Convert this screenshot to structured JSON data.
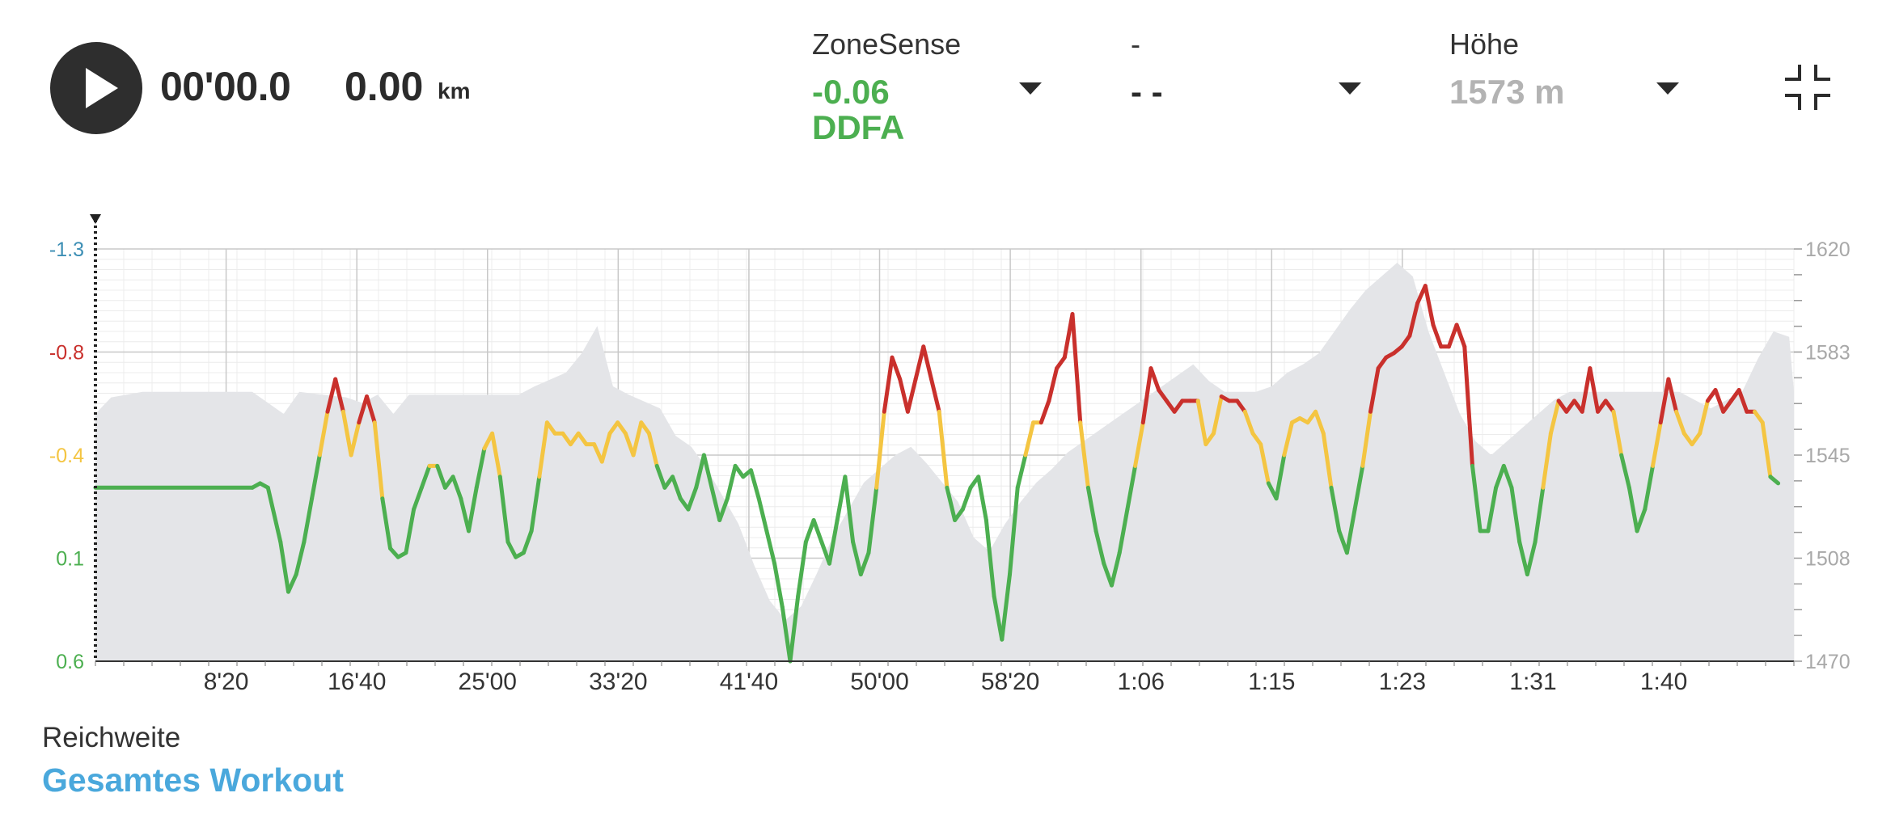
{
  "player": {
    "time": "00'00.0",
    "distance": "0.00",
    "distance_unit": "km"
  },
  "metrics": [
    {
      "label": "ZoneSense",
      "value": "-0.06",
      "value2": "DDFA",
      "color": "#4caf50"
    },
    {
      "label": "-",
      "value": "- -",
      "value2": "",
      "color": "#2b2b2b"
    },
    {
      "label": "Höhe",
      "value": "1573 m",
      "value2": "",
      "color": "#b3b3b3"
    }
  ],
  "icons": {
    "play": "play-icon",
    "collapse": "collapse-icon",
    "dropdown": "chevron-down-icon"
  },
  "range": {
    "label": "Reichweite",
    "value": "Gesamtes Workout"
  },
  "colors": {
    "green": "#4caf50",
    "yellow": "#f4c542",
    "red": "#c9302c",
    "blue_link": "#4aa8dc",
    "elevation_fill": "#e4e5e8"
  },
  "chart_data": {
    "type": "line",
    "x_unit": "minutes",
    "xlim": [
      0,
      108.3
    ],
    "x_ticks": [
      {
        "value": 8.333,
        "label": "8'20"
      },
      {
        "value": 16.667,
        "label": "16'40"
      },
      {
        "value": 25,
        "label": "25'00"
      },
      {
        "value": 33.333,
        "label": "33'20"
      },
      {
        "value": 41.667,
        "label": "41'40"
      },
      {
        "value": 50,
        "label": "50'00"
      },
      {
        "value": 58.333,
        "label": "58'20"
      },
      {
        "value": 66.667,
        "label": "1:06"
      },
      {
        "value": 75,
        "label": "1:15"
      },
      {
        "value": 83.333,
        "label": "1:23"
      },
      {
        "value": 91.667,
        "label": "1:31"
      },
      {
        "value": 100,
        "label": "1:40"
      }
    ],
    "y_left": {
      "ticks": [
        "-1.3",
        "-0.8",
        "-0.4",
        "0.1",
        "0.6"
      ],
      "tick_colors": [
        "#3d8fb5",
        "#c9302c",
        "#f4c542",
        "#4caf50",
        "#4caf50"
      ],
      "ylim": [
        0.6,
        -1.3
      ]
    },
    "y_right": {
      "ticks": [
        "1620",
        "1583",
        "1545",
        "1508",
        "1470"
      ],
      "ylim": [
        1470,
        1620
      ]
    },
    "zone_thresholds": {
      "red_above": -0.55,
      "yellow_above": -0.3
    },
    "grid": true,
    "series": [
      {
        "axis": "left",
        "points": [
          [
            0,
            -0.2
          ],
          [
            10,
            -0.2
          ],
          [
            10.5,
            -0.22
          ],
          [
            11,
            -0.2
          ],
          [
            11.8,
            0.05
          ],
          [
            12.3,
            0.28
          ],
          [
            12.8,
            0.2
          ],
          [
            13.3,
            0.05
          ],
          [
            13.8,
            -0.15
          ],
          [
            14.3,
            -0.35
          ],
          [
            14.8,
            -0.55
          ],
          [
            15.3,
            -0.7
          ],
          [
            15.8,
            -0.55
          ],
          [
            16.3,
            -0.35
          ],
          [
            16.8,
            -0.5
          ],
          [
            17.3,
            -0.62
          ],
          [
            17.8,
            -0.5
          ],
          [
            18.3,
            -0.15
          ],
          [
            18.8,
            0.08
          ],
          [
            19.3,
            0.12
          ],
          [
            19.8,
            0.1
          ],
          [
            20.3,
            -0.1
          ],
          [
            20.8,
            -0.2
          ],
          [
            21.3,
            -0.3
          ],
          [
            21.8,
            -0.3
          ],
          [
            22.3,
            -0.2
          ],
          [
            22.8,
            -0.25
          ],
          [
            23.3,
            -0.15
          ],
          [
            23.8,
            0.0
          ],
          [
            24.3,
            -0.2
          ],
          [
            24.8,
            -0.38
          ],
          [
            25.3,
            -0.45
          ],
          [
            25.8,
            -0.25
          ],
          [
            26.3,
            0.05
          ],
          [
            26.8,
            0.12
          ],
          [
            27.3,
            0.1
          ],
          [
            27.8,
            0.0
          ],
          [
            28.3,
            -0.25
          ],
          [
            28.8,
            -0.5
          ],
          [
            29.3,
            -0.45
          ],
          [
            29.8,
            -0.45
          ],
          [
            30.3,
            -0.4
          ],
          [
            30.8,
            -0.45
          ],
          [
            31.3,
            -0.4
          ],
          [
            31.8,
            -0.4
          ],
          [
            32.3,
            -0.32
          ],
          [
            32.8,
            -0.45
          ],
          [
            33.3,
            -0.5
          ],
          [
            33.8,
            -0.45
          ],
          [
            34.3,
            -0.35
          ],
          [
            34.8,
            -0.5
          ],
          [
            35.3,
            -0.45
          ],
          [
            35.8,
            -0.3
          ],
          [
            36.3,
            -0.2
          ],
          [
            36.8,
            -0.25
          ],
          [
            37.3,
            -0.15
          ],
          [
            37.8,
            -0.1
          ],
          [
            38.3,
            -0.2
          ],
          [
            38.8,
            -0.35
          ],
          [
            39.3,
            -0.2
          ],
          [
            39.8,
            -0.05
          ],
          [
            40.3,
            -0.15
          ],
          [
            40.8,
            -0.3
          ],
          [
            41.3,
            -0.25
          ],
          [
            41.8,
            -0.28
          ],
          [
            42.3,
            -0.15
          ],
          [
            42.8,
            0.0
          ],
          [
            43.3,
            0.15
          ],
          [
            43.8,
            0.35
          ],
          [
            44.3,
            0.6
          ],
          [
            44.8,
            0.3
          ],
          [
            45.3,
            0.05
          ],
          [
            45.8,
            -0.05
          ],
          [
            46.3,
            0.05
          ],
          [
            46.8,
            0.15
          ],
          [
            47.3,
            -0.05
          ],
          [
            47.8,
            -0.25
          ],
          [
            48.3,
            0.05
          ],
          [
            48.8,
            0.2
          ],
          [
            49.3,
            0.1
          ],
          [
            49.8,
            -0.2
          ],
          [
            50.3,
            -0.55
          ],
          [
            50.8,
            -0.8
          ],
          [
            51.3,
            -0.7
          ],
          [
            51.8,
            -0.55
          ],
          [
            52.3,
            -0.7
          ],
          [
            52.8,
            -0.85
          ],
          [
            53.3,
            -0.7
          ],
          [
            53.8,
            -0.55
          ],
          [
            54.3,
            -0.2
          ],
          [
            54.8,
            -0.05
          ],
          [
            55.3,
            -0.1
          ],
          [
            55.8,
            -0.2
          ],
          [
            56.3,
            -0.25
          ],
          [
            56.8,
            -0.05
          ],
          [
            57.3,
            0.3
          ],
          [
            57.8,
            0.5
          ],
          [
            58.3,
            0.2
          ],
          [
            58.8,
            -0.2
          ],
          [
            59.3,
            -0.35
          ],
          [
            59.8,
            -0.5
          ],
          [
            60.3,
            -0.5
          ],
          [
            60.8,
            -0.6
          ],
          [
            61.3,
            -0.75
          ],
          [
            61.8,
            -0.8
          ],
          [
            62.3,
            -1.0
          ],
          [
            62.8,
            -0.5
          ],
          [
            63.3,
            -0.2
          ],
          [
            63.8,
            0.0
          ],
          [
            64.3,
            0.15
          ],
          [
            64.8,
            0.25
          ],
          [
            65.3,
            0.1
          ],
          [
            65.8,
            -0.1
          ],
          [
            66.3,
            -0.3
          ],
          [
            66.8,
            -0.5
          ],
          [
            67.3,
            -0.75
          ],
          [
            67.8,
            -0.65
          ],
          [
            68.3,
            -0.6
          ],
          [
            68.8,
            -0.55
          ],
          [
            69.3,
            -0.6
          ],
          [
            69.8,
            -0.6
          ],
          [
            70.3,
            -0.6
          ],
          [
            70.8,
            -0.4
          ],
          [
            71.3,
            -0.45
          ],
          [
            71.8,
            -0.62
          ],
          [
            72.3,
            -0.6
          ],
          [
            72.8,
            -0.6
          ],
          [
            73.3,
            -0.55
          ],
          [
            73.8,
            -0.45
          ],
          [
            74.3,
            -0.4
          ],
          [
            74.8,
            -0.22
          ],
          [
            75.3,
            -0.15
          ],
          [
            75.8,
            -0.35
          ],
          [
            76.3,
            -0.5
          ],
          [
            76.8,
            -0.52
          ],
          [
            77.3,
            -0.5
          ],
          [
            77.8,
            -0.55
          ],
          [
            78.3,
            -0.45
          ],
          [
            78.8,
            -0.2
          ],
          [
            79.3,
            0.0
          ],
          [
            79.8,
            0.1
          ],
          [
            80.3,
            -0.1
          ],
          [
            80.8,
            -0.3
          ],
          [
            81.3,
            -0.55
          ],
          [
            81.8,
            -0.75
          ],
          [
            82.3,
            -0.8
          ],
          [
            82.8,
            -0.82
          ],
          [
            83.3,
            -0.85
          ],
          [
            83.8,
            -0.9
          ],
          [
            84.3,
            -1.05
          ],
          [
            84.8,
            -1.13
          ],
          [
            85.3,
            -0.95
          ],
          [
            85.8,
            -0.85
          ],
          [
            86.3,
            -0.85
          ],
          [
            86.8,
            -0.95
          ],
          [
            87.3,
            -0.85
          ],
          [
            87.8,
            -0.3
          ],
          [
            88.3,
            0.0
          ],
          [
            88.8,
            0.0
          ],
          [
            89.3,
            -0.2
          ],
          [
            89.8,
            -0.3
          ],
          [
            90.3,
            -0.2
          ],
          [
            90.8,
            0.05
          ],
          [
            91.3,
            0.2
          ],
          [
            91.8,
            0.05
          ],
          [
            92.3,
            -0.2
          ],
          [
            92.8,
            -0.45
          ],
          [
            93.3,
            -0.6
          ],
          [
            93.8,
            -0.55
          ],
          [
            94.3,
            -0.6
          ],
          [
            94.8,
            -0.55
          ],
          [
            95.3,
            -0.75
          ],
          [
            95.8,
            -0.55
          ],
          [
            96.3,
            -0.6
          ],
          [
            96.8,
            -0.55
          ],
          [
            97.3,
            -0.35
          ],
          [
            97.8,
            -0.2
          ],
          [
            98.3,
            0.0
          ],
          [
            98.8,
            -0.1
          ],
          [
            99.3,
            -0.3
          ],
          [
            99.8,
            -0.5
          ],
          [
            100.3,
            -0.7
          ],
          [
            100.8,
            -0.55
          ],
          [
            101.3,
            -0.45
          ],
          [
            101.8,
            -0.4
          ],
          [
            102.3,
            -0.45
          ],
          [
            102.8,
            -0.6
          ],
          [
            103.3,
            -0.65
          ],
          [
            103.8,
            -0.55
          ],
          [
            104.3,
            -0.6
          ],
          [
            104.8,
            -0.65
          ],
          [
            105.3,
            -0.55
          ],
          [
            105.8,
            -0.55
          ],
          [
            106.3,
            -0.5
          ],
          [
            106.8,
            -0.25
          ],
          [
            107.3,
            -0.22
          ]
        ]
      },
      {
        "axis": "right",
        "points": [
          [
            0,
            1560
          ],
          [
            1,
            1566
          ],
          [
            3,
            1568
          ],
          [
            10,
            1568
          ],
          [
            12,
            1560
          ],
          [
            13,
            1568
          ],
          [
            16,
            1566
          ],
          [
            17,
            1564
          ],
          [
            18,
            1567
          ],
          [
            19,
            1560
          ],
          [
            20,
            1567
          ],
          [
            27,
            1567
          ],
          [
            28,
            1570
          ],
          [
            30,
            1575
          ],
          [
            31,
            1582
          ],
          [
            32,
            1592
          ],
          [
            33,
            1570
          ],
          [
            34,
            1567
          ],
          [
            36,
            1562
          ],
          [
            37,
            1552
          ],
          [
            38,
            1548
          ],
          [
            39,
            1540
          ],
          [
            40,
            1530
          ],
          [
            41,
            1520
          ],
          [
            42,
            1505
          ],
          [
            43,
            1492
          ],
          [
            44,
            1485
          ],
          [
            45,
            1490
          ],
          [
            46,
            1502
          ],
          [
            47,
            1515
          ],
          [
            48,
            1525
          ],
          [
            49,
            1535
          ],
          [
            50,
            1540
          ],
          [
            51,
            1545
          ],
          [
            52,
            1548
          ],
          [
            53,
            1542
          ],
          [
            54,
            1535
          ],
          [
            55,
            1528
          ],
          [
            56,
            1515
          ],
          [
            57,
            1510
          ],
          [
            58,
            1520
          ],
          [
            59,
            1528
          ],
          [
            60,
            1535
          ],
          [
            61,
            1540
          ],
          [
            62,
            1546
          ],
          [
            63,
            1550
          ],
          [
            64,
            1554
          ],
          [
            65,
            1558
          ],
          [
            66,
            1562
          ],
          [
            67,
            1566
          ],
          [
            68,
            1570
          ],
          [
            69,
            1574
          ],
          [
            70,
            1578
          ],
          [
            71,
            1572
          ],
          [
            72,
            1568
          ],
          [
            73,
            1568
          ],
          [
            74,
            1568
          ],
          [
            75,
            1570
          ],
          [
            76,
            1575
          ],
          [
            77,
            1578
          ],
          [
            78,
            1582
          ],
          [
            79,
            1590
          ],
          [
            80,
            1598
          ],
          [
            81,
            1605
          ],
          [
            82,
            1610
          ],
          [
            83,
            1615
          ],
          [
            84,
            1610
          ],
          [
            85,
            1590
          ],
          [
            86,
            1575
          ],
          [
            87,
            1560
          ],
          [
            88,
            1550
          ],
          [
            89,
            1545
          ],
          [
            90,
            1550
          ],
          [
            91,
            1555
          ],
          [
            92,
            1560
          ],
          [
            93,
            1565
          ],
          [
            94,
            1568
          ],
          [
            95,
            1568
          ],
          [
            96,
            1568
          ],
          [
            97,
            1568
          ],
          [
            98,
            1568
          ],
          [
            99,
            1568
          ],
          [
            100,
            1568
          ],
          [
            101,
            1568
          ],
          [
            102,
            1565
          ],
          [
            103,
            1562
          ],
          [
            104,
            1565
          ],
          [
            105,
            1568
          ],
          [
            106,
            1580
          ],
          [
            107,
            1590
          ],
          [
            108,
            1588
          ],
          [
            108.3,
            1568
          ]
        ]
      }
    ]
  }
}
